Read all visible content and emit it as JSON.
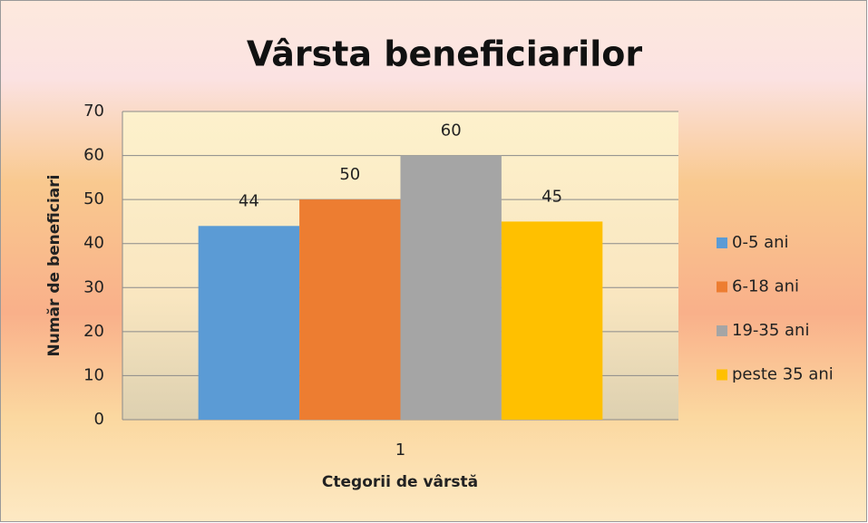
{
  "chart_data": {
    "type": "bar",
    "title": "Vârsta beneficiarilor",
    "xlabel": "Ctegorii de vârstă",
    "ylabel": "Număr de beneficiari",
    "categories": [
      "1"
    ],
    "series": [
      {
        "name": "0-5 ani",
        "color": "#5b9bd5",
        "values": [
          44
        ]
      },
      {
        "name": "6-18 ani",
        "color": "#ed7d31",
        "values": [
          50
        ]
      },
      {
        "name": "19-35 ani",
        "color": "#a5a5a5",
        "values": [
          60
        ]
      },
      {
        "name": "peste 35 ani",
        "color": "#ffc000",
        "values": [
          45
        ]
      }
    ],
    "ylim": [
      0,
      70
    ],
    "yticks": [
      0,
      10,
      20,
      30,
      40,
      50,
      60,
      70
    ],
    "grid": true,
    "legend": "right"
  }
}
